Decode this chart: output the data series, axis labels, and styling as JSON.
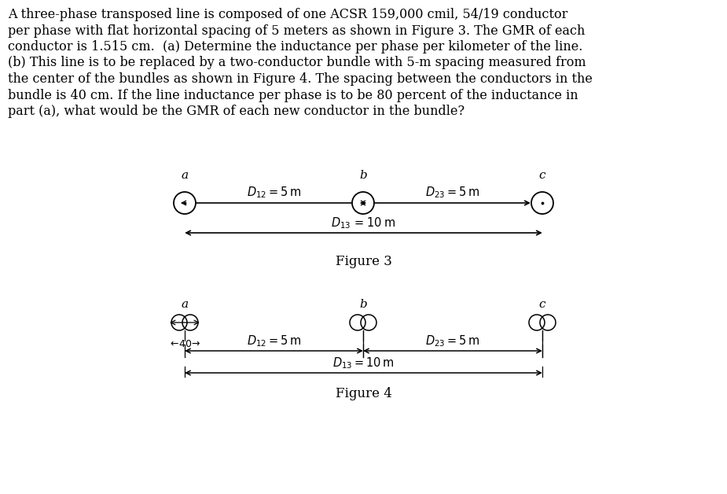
{
  "bg_color": "#ffffff",
  "text_color": "#000000",
  "paragraph_lines": [
    "A three-phase transposed line is composed of one ACSR 159,000 cmil, 54/19 conductor",
    "per phase with flat horizontal spacing of 5 meters as shown in Figure 3. The GMR of each",
    "conductor is 1.515 cm.  (a) Determine the inductance per phase per kilometer of the line.",
    "(b) This line is to be replaced by a two-conductor bundle with 5-m spacing measured from",
    "the center of the bundles as shown in Figure 4. The spacing between the conductors in the",
    "bundle is 40 cm. If the line inductance per phase is to be 80 percent of the inductance in",
    "part (a), what would be the GMR of each new conductor in the bundle?"
  ],
  "fig3_label": "Figure 3",
  "fig4_label": "Figure 4"
}
